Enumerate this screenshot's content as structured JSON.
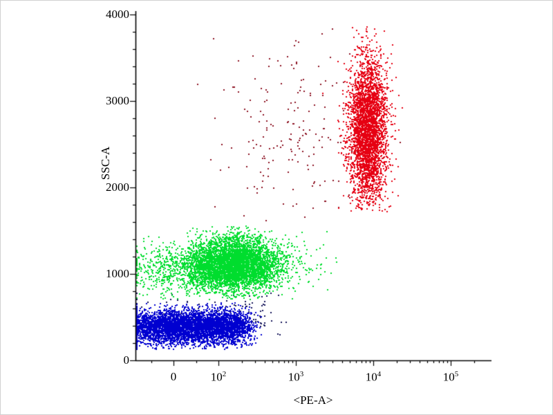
{
  "figure": {
    "background": "#ffffff",
    "border_color": "#d0d0d0"
  },
  "chart_data": {
    "type": "scatter",
    "title": "",
    "xlabel": "<PE-A>",
    "ylabel": "SSC-A",
    "legend": "none",
    "grid": false,
    "x_axis": {
      "scale": "biexponential",
      "min": -85,
      "max": 200000,
      "major_ticks": [
        {
          "value": 0,
          "label": "0"
        },
        {
          "value": 100,
          "label": "10^2"
        },
        {
          "value": 1000,
          "label": "10^3"
        },
        {
          "value": 10000,
          "label": "10^4"
        },
        {
          "value": 100000,
          "label": "10^5"
        }
      ],
      "minor_ticks": [
        -50,
        50,
        200,
        300,
        400,
        500,
        600,
        700,
        800,
        900,
        2000,
        3000,
        4000,
        5000,
        6000,
        7000,
        8000,
        9000,
        20000,
        30000,
        40000,
        50000,
        60000,
        70000,
        80000,
        90000,
        200000
      ]
    },
    "y_axis": {
      "scale": "linear",
      "min": 0,
      "max": 4000,
      "major_ticks": [
        {
          "value": 0,
          "label": "0"
        },
        {
          "value": 1000,
          "label": "1000"
        },
        {
          "value": 2000,
          "label": "2000"
        },
        {
          "value": 3000,
          "label": "3000"
        },
        {
          "value": 4000,
          "label": "4000"
        }
      ],
      "minor_step": 200
    },
    "points_seed": 42,
    "point_size": 2,
    "populations": [
      {
        "name": "debris-dark",
        "color": "#14145a",
        "count": 130,
        "pe": {
          "dist": "linear",
          "center": 130,
          "sigma": 230
        },
        "ssc": {
          "center": 520,
          "sigma": 150,
          "min": 260,
          "max": 790
        }
      },
      {
        "name": "green-population-main",
        "color": "#00dd2e",
        "count": 4600,
        "pe": {
          "dist": "log",
          "center": 2.2,
          "sigma": 0.28
        },
        "ssc": {
          "center": 1120,
          "sigma": 155,
          "min": 710,
          "max": 1560
        }
      },
      {
        "name": "green-population-left",
        "color": "#00dd2e",
        "count": 850,
        "pe": {
          "dist": "linear",
          "center": 25,
          "sigma": 65
        },
        "ssc": {
          "center": 1080,
          "sigma": 150,
          "min": 710,
          "max": 1500
        }
      },
      {
        "name": "green-population-tail",
        "color": "#00dd2e",
        "count": 130,
        "pe": {
          "dist": "log",
          "center": 2.85,
          "sigma": 0.3
        },
        "ssc": {
          "center": 1150,
          "sigma": 170,
          "min": 720,
          "max": 1520
        }
      },
      {
        "name": "blue-population",
        "color": "#0000d0",
        "count": 5200,
        "pe": {
          "dist": "linear",
          "center": 30,
          "sigma": 92
        },
        "ssc": {
          "center": 395,
          "sigma": 100,
          "min": 135,
          "max": 670
        }
      },
      {
        "name": "red-population-scatter",
        "color": "#8e1424",
        "count": 180,
        "pe": {
          "dist": "log",
          "center": 2.95,
          "sigma": 0.5
        },
        "ssc": {
          "center": 2650,
          "sigma": 560,
          "min": 1620,
          "max": 3900
        }
      },
      {
        "name": "red-population-main",
        "color": "#e60012",
        "count": 3400,
        "pe": {
          "dist": "log",
          "center": 3.92,
          "sigma": 0.125
        },
        "ssc": {
          "center": 2680,
          "sigma": 420,
          "min": 1720,
          "max": 3870
        }
      }
    ]
  }
}
